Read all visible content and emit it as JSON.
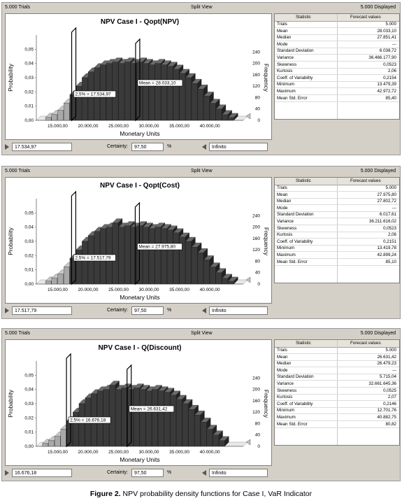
{
  "panels": [
    {
      "topbar": {
        "trials": "5.000 Trials",
        "view": "Split View",
        "displayed": "5.000 Displayed"
      },
      "chart_data": {
        "type": "bar",
        "title": "NPV Case I - Qopt(NPV)",
        "xlabel": "Monetary Units",
        "ylabel": "Probability",
        "y2label": "Frequency",
        "xlim": [
          11500,
          45500
        ],
        "ylim": [
          0,
          0.06
        ],
        "x_ticks": [
          "15.000,00",
          "20.000,00",
          "25.000,00",
          "30.000,00",
          "35.000,00",
          "40.000,00"
        ],
        "x_tick_values": [
          15000,
          20000,
          25000,
          30000,
          35000,
          40000
        ],
        "y_ticks": [
          "0,00",
          "0,01",
          "0,02",
          "0,03",
          "0,04",
          "0,05"
        ],
        "y2_ticks": [
          "0",
          "40",
          "80",
          "120",
          "160",
          "200",
          "240"
        ],
        "bin_start": 13000,
        "bin_width": 1000,
        "values": [
          0.002,
          0.004,
          0.007,
          0.012,
          0.018,
          0.024,
          0.03,
          0.034,
          0.037,
          0.039,
          0.04,
          0.041,
          0.04,
          0.041,
          0.04,
          0.041,
          0.04,
          0.039,
          0.04,
          0.039,
          0.038,
          0.036,
          0.033,
          0.03,
          0.026,
          0.022,
          0.017,
          0.012,
          0.008,
          0.004,
          0.002
        ],
        "left_cut": 17534.97,
        "left_label": "2,5% = 17.534,97",
        "mean": 28033.1,
        "mean_label": "Mean = 28.033,10"
      },
      "stats": {
        "header": [
          "Statistic",
          "Forecast values"
        ],
        "rows": [
          [
            "Trials",
            "5.000"
          ],
          [
            "Mean",
            "28.033,10"
          ],
          [
            "Median",
            "27.851,41"
          ],
          [
            "Mode",
            "---"
          ],
          [
            "Standard Deviation",
            "6.038,72"
          ],
          [
            "Variance",
            "36.466.177,90"
          ],
          [
            "Skewness",
            "0,0523"
          ],
          [
            "Kurtosis",
            "2,06"
          ],
          [
            "Coeff. of Variability",
            "0,2154"
          ],
          [
            "Minimum",
            "13.479,39"
          ],
          [
            "Maximum",
            "42.972,72"
          ],
          [
            "Mean Std. Error",
            "85,40"
          ]
        ]
      },
      "bottom": {
        "left_value": "17.534,97",
        "certainty_label": "Certainty:",
        "certainty": "97,50",
        "pct": "%",
        "right_value": "Infinito"
      }
    },
    {
      "topbar": {
        "trials": "5.000 Trials",
        "view": "Split View",
        "displayed": "5.000 Displayed"
      },
      "chart_data": {
        "type": "bar",
        "title": "NPV Case I - Qopt(Cost)",
        "xlabel": "Monetary Units",
        "ylabel": "Probability",
        "y2label": "Frequency",
        "xlim": [
          11500,
          45500
        ],
        "ylim": [
          0,
          0.06
        ],
        "x_ticks": [
          "15.000,00",
          "20.000,00",
          "25.000,00",
          "30.000,00",
          "35.000,00",
          "40.000,00"
        ],
        "x_tick_values": [
          15000,
          20000,
          25000,
          30000,
          35000,
          40000
        ],
        "y_ticks": [
          "0,00",
          "0,01",
          "0,02",
          "0,03",
          "0,04",
          "0,05"
        ],
        "y2_ticks": [
          "0",
          "40",
          "80",
          "120",
          "160",
          "200",
          "240"
        ],
        "bin_start": 13000,
        "bin_width": 1000,
        "values": [
          0.002,
          0.004,
          0.007,
          0.012,
          0.018,
          0.024,
          0.03,
          0.034,
          0.037,
          0.039,
          0.04,
          0.043,
          0.04,
          0.041,
          0.04,
          0.041,
          0.04,
          0.039,
          0.04,
          0.039,
          0.038,
          0.036,
          0.033,
          0.03,
          0.026,
          0.022,
          0.017,
          0.012,
          0.008,
          0.004,
          0.002
        ],
        "left_cut": 17517.79,
        "left_label": "2,5% = 17.517,79",
        "mean": 27975.8,
        "mean_label": "Mean = 27.975,80"
      },
      "stats": {
        "header": [
          "Statistic",
          "Forecast values"
        ],
        "rows": [
          [
            "Trials",
            "5.000"
          ],
          [
            "Mean",
            "27.975,80"
          ],
          [
            "Median",
            "27.802,72"
          ],
          [
            "Mode",
            "---"
          ],
          [
            "Standard Deviation",
            "6.017,61"
          ],
          [
            "Variance",
            "36.211.616,02"
          ],
          [
            "Skewness",
            "0,0523"
          ],
          [
            "Kurtosis",
            "2,06"
          ],
          [
            "Coeff. of Variability",
            "0,2151"
          ],
          [
            "Minimum",
            "13.419,78"
          ],
          [
            "Maximum",
            "42.899,24"
          ],
          [
            "Mean Std. Error",
            "85,10"
          ]
        ]
      },
      "bottom": {
        "left_value": "17.517,79",
        "certainty_label": "Certainty:",
        "certainty": "97,50",
        "pct": "%",
        "right_value": "Infinito"
      }
    },
    {
      "topbar": {
        "trials": "5.000 Trials",
        "view": "Split View",
        "displayed": "5.000 Displayed"
      },
      "chart_data": {
        "type": "bar",
        "title": "NPV Case I - Q(Discount)",
        "xlabel": "Monetary Units",
        "ylabel": "Probability",
        "y2label": "Frequency",
        "xlim": [
          11500,
          45500
        ],
        "ylim": [
          0,
          0.06
        ],
        "x_ticks": [
          "15.000,00",
          "20.000,00",
          "25.000,00",
          "30.000,00",
          "35.000,00",
          "40.000,00"
        ],
        "x_tick_values": [
          15000,
          20000,
          25000,
          30000,
          35000,
          40000
        ],
        "y_ticks": [
          "0,00",
          "0,01",
          "0,02",
          "0,03",
          "0,04",
          "0,05"
        ],
        "y2_ticks": [
          "0",
          "40",
          "80",
          "120",
          "160",
          "200",
          "240"
        ],
        "bin_start": 12500,
        "bin_width": 1000,
        "values": [
          0.002,
          0.004,
          0.007,
          0.012,
          0.018,
          0.024,
          0.03,
          0.034,
          0.037,
          0.039,
          0.04,
          0.043,
          0.04,
          0.041,
          0.04,
          0.041,
          0.04,
          0.039,
          0.04,
          0.039,
          0.038,
          0.036,
          0.033,
          0.03,
          0.026,
          0.022,
          0.017,
          0.012,
          0.008,
          0.004
        ],
        "left_cut": 16676.18,
        "left_label": "2,5% = 16.676,18",
        "mean": 26631.42,
        "mean_label": "Mean = 26.631,42"
      },
      "stats": {
        "header": [
          "Statistic",
          "Forecast values"
        ],
        "rows": [
          [
            "Trials",
            "5.000"
          ],
          [
            "Mean",
            "26.631,42"
          ],
          [
            "Median",
            "26.479,23"
          ],
          [
            "Mode",
            "---"
          ],
          [
            "Standard Deviation",
            "5.715,04"
          ],
          [
            "Variance",
            "32.661.645,36"
          ],
          [
            "Skewness",
            "0,0525"
          ],
          [
            "Kurtosis",
            "2,07"
          ],
          [
            "Coeff. of Variability",
            "0,2146"
          ],
          [
            "Minimum",
            "12.701,76"
          ],
          [
            "Maximum",
            "40.882,75"
          ],
          [
            "Mean Std. Error",
            "80,82"
          ]
        ]
      },
      "bottom": {
        "left_value": "16.676,18",
        "certainty_label": "Certainty:",
        "certainty": "97,50",
        "pct": "%",
        "right_value": "Infinito"
      }
    }
  ],
  "caption": {
    "label": "Figure 2.",
    "text": " NPV probability density functions for Case I, VaR Indicator"
  },
  "colors": {
    "bar": "#3a3a3a",
    "bar_outside": "#a8a8a8",
    "bar_edge": "#1a1a1a"
  }
}
